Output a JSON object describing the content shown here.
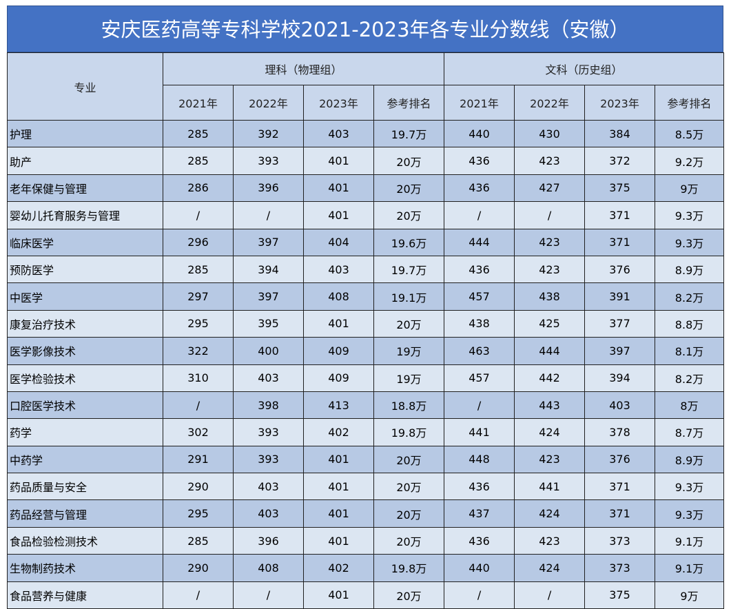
{
  "title": "安庆医药高等专科学校2021-2023年各专业分数线（安徽）",
  "header": {
    "major_label": "专业",
    "science_group": "理科（物理组）",
    "arts_group": "文科（历史组）",
    "columns": [
      "2021年",
      "2022年",
      "2023年",
      "参考排名",
      "2021年",
      "2022年",
      "2023年",
      "参考排名"
    ]
  },
  "rows": [
    {
      "name": "护理",
      "values": [
        "285",
        "392",
        "403",
        "19.7万",
        "440",
        "430",
        "384",
        "8.5万"
      ]
    },
    {
      "name": "助产",
      "values": [
        "285",
        "393",
        "401",
        "20万",
        "436",
        "423",
        "372",
        "9.2万"
      ]
    },
    {
      "name": "老年保健与管理",
      "values": [
        "286",
        "396",
        "401",
        "20万",
        "436",
        "427",
        "375",
        "9万"
      ]
    },
    {
      "name": "婴幼儿托育服务与管理",
      "values": [
        "/",
        "/",
        "401",
        "20万",
        "/",
        "/",
        "371",
        "9.3万"
      ]
    },
    {
      "name": "临床医学",
      "values": [
        "296",
        "397",
        "404",
        "19.6万",
        "444",
        "423",
        "371",
        "9.3万"
      ]
    },
    {
      "name": "预防医学",
      "values": [
        "285",
        "394",
        "403",
        "19.7万",
        "436",
        "423",
        "376",
        "8.9万"
      ]
    },
    {
      "name": "中医学",
      "values": [
        "297",
        "397",
        "408",
        "19.1万",
        "457",
        "438",
        "391",
        "8.2万"
      ]
    },
    {
      "name": "康复治疗技术",
      "values": [
        "295",
        "395",
        "401",
        "20万",
        "438",
        "425",
        "377",
        "8.8万"
      ]
    },
    {
      "name": "医学影像技术",
      "values": [
        "322",
        "400",
        "409",
        "19万",
        "463",
        "444",
        "397",
        "8.1万"
      ]
    },
    {
      "name": "医学检验技术",
      "values": [
        "310",
        "403",
        "409",
        "19万",
        "457",
        "442",
        "394",
        "8.2万"
      ]
    },
    {
      "name": "口腔医学技术",
      "values": [
        "/",
        "398",
        "413",
        "18.8万",
        "/",
        "443",
        "403",
        "8万"
      ]
    },
    {
      "name": "药学",
      "values": [
        "302",
        "393",
        "402",
        "19.8万",
        "441",
        "424",
        "378",
        "8.7万"
      ]
    },
    {
      "name": "中药学",
      "values": [
        "291",
        "393",
        "401",
        "20万",
        "448",
        "423",
        "376",
        "8.9万"
      ]
    },
    {
      "name": "药品质量与安全",
      "values": [
        "290",
        "403",
        "401",
        "20万",
        "436",
        "441",
        "371",
        "9.3万"
      ]
    },
    {
      "name": "药品经营与管理",
      "values": [
        "295",
        "403",
        "401",
        "20万",
        "437",
        "424",
        "371",
        "9.3万"
      ]
    },
    {
      "name": "食品检验检测技术",
      "values": [
        "285",
        "396",
        "401",
        "20万",
        "436",
        "423",
        "373",
        "9.1万"
      ]
    },
    {
      "name": "生物制药技术",
      "values": [
        "290",
        "408",
        "402",
        "19.8万",
        "440",
        "424",
        "373",
        "9.1万"
      ]
    },
    {
      "name": "食品营养与健康",
      "values": [
        "/",
        "/",
        "401",
        "20万",
        "/",
        "/",
        "375",
        "9万"
      ]
    }
  ]
}
